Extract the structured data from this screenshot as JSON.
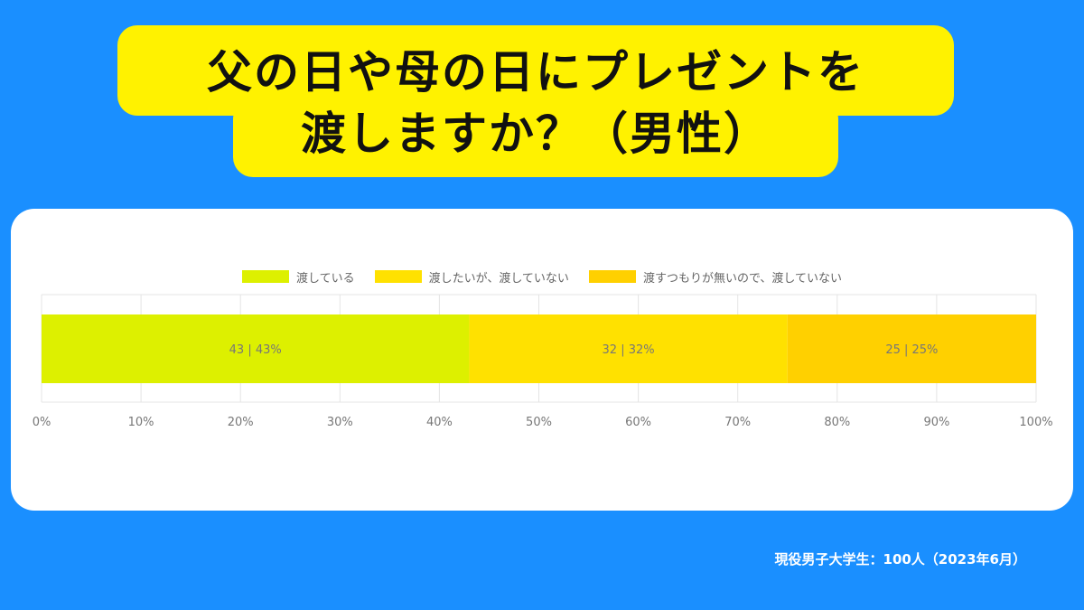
{
  "title_line1": "父の日や母の日にプレゼントを",
  "title_line2": "渡しますか？（男性）",
  "footer_note": "現役男子大学生：100人（2023年6月）",
  "colors": {
    "background": "#1a8fff",
    "title_band": "#fff200",
    "series": [
      "#ddf000",
      "#ffe100",
      "#ffd000"
    ],
    "grid": "#e4e4e4",
    "tick_text": "#777777"
  },
  "chart_data": {
    "type": "bar",
    "orientation": "horizontal",
    "stacked": true,
    "xlim": [
      0,
      100
    ],
    "x_ticks": [
      "0%",
      "10%",
      "20%",
      "30%",
      "40%",
      "50%",
      "60%",
      "70%",
      "80%",
      "90%",
      "100%"
    ],
    "series": [
      {
        "name": "渡している",
        "value": 43,
        "label": "43 | 43%"
      },
      {
        "name": "渡したいが、渡していない",
        "value": 32,
        "label": "32 | 32%"
      },
      {
        "name": "渡すつもりが無いので、渡していない",
        "value": 25,
        "label": "25 | 25%"
      }
    ],
    "legend_position": "top",
    "grid": true
  }
}
